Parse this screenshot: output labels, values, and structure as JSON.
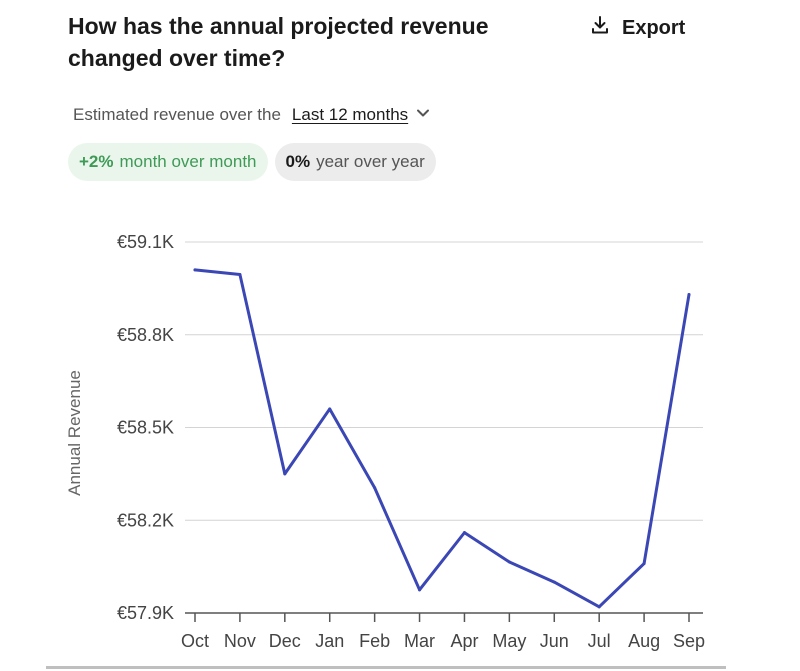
{
  "header": {
    "title": "How has the annual projected revenue changed over time?",
    "export_label": "Export",
    "export_icon": "download-icon"
  },
  "filter": {
    "prefix": "Estimated revenue over the",
    "range_label": "Last 12 months",
    "dropdown_icon": "chevron-down-icon"
  },
  "pills": {
    "mom_value": "+2%",
    "mom_label": "month over month",
    "yoy_value": "0%",
    "yoy_label": "year over year"
  },
  "colors": {
    "line": "#3a47b5",
    "grid": "#d4d4d4",
    "positive_text": "#3f9a57",
    "positive_bg": "#eaf6ec",
    "neutral_bg": "#ececec"
  },
  "chart_data": {
    "type": "line",
    "title": "",
    "xlabel": "",
    "ylabel": "Annual Revenue",
    "categories": [
      "Oct",
      "Nov",
      "Dec",
      "Jan",
      "Feb",
      "Mar",
      "Apr",
      "May",
      "Jun",
      "Jul",
      "Aug",
      "Sep"
    ],
    "series": [
      {
        "values": [
          59010,
          58995,
          58350,
          58560,
          58305,
          57975,
          58160,
          58065,
          58000,
          57920,
          58060,
          58930
        ]
      }
    ],
    "yticks": [
      57900,
      58200,
      58500,
      58800,
      59100
    ],
    "ytick_labels": [
      "€57.9K",
      "€58.2K",
      "€58.5K",
      "€58.8K",
      "€59.1K"
    ],
    "ylim": [
      57900,
      59100
    ],
    "grid": true,
    "legend": "none"
  }
}
